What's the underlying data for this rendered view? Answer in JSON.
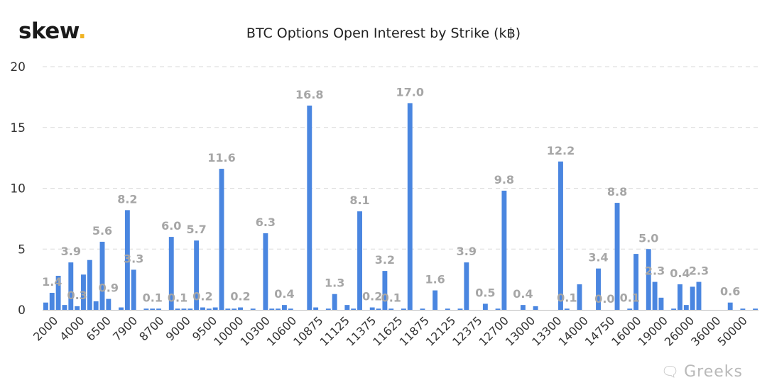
{
  "brand": {
    "name": "skew",
    "dot": "."
  },
  "watermark": {
    "icon": "chat-bubbles-icon",
    "text": "Greeks"
  },
  "colors": {
    "bar": "#4a86e0",
    "grid": "#d9d9d9",
    "axis": "#333333",
    "label": "#a6a6a6",
    "logo_dot": "#f0b323"
  },
  "chart_data": {
    "type": "bar",
    "title": "BTC Options Open Interest by Strike (k฿)",
    "xlabel": "",
    "ylabel": "",
    "ylim": [
      0,
      20
    ],
    "yticks": [
      0,
      5,
      10,
      15,
      20
    ],
    "grid": true,
    "tick_labels": [
      "2000",
      "4000",
      "6500",
      "7900",
      "8700",
      "9000",
      "9500",
      "10000",
      "10300",
      "10600",
      "10875",
      "11125",
      "11375",
      "11625",
      "11875",
      "12125",
      "12375",
      "12700",
      "13000",
      "13300",
      "14000",
      "14750",
      "16000",
      "19000",
      "26000",
      "36000",
      "50000"
    ],
    "values": [
      0.6,
      1.4,
      2.8,
      0.4,
      3.9,
      0.3,
      2.9,
      4.1,
      0.7,
      5.6,
      0.9,
      0,
      0.2,
      8.2,
      3.3,
      0,
      0.1,
      0.1,
      0.1,
      0,
      6.0,
      0.1,
      0.1,
      0.1,
      5.7,
      0.2,
      0.1,
      0.2,
      11.6,
      0.1,
      0.1,
      0.2,
      0,
      0.1,
      0,
      6.3,
      0.1,
      0.1,
      0.4,
      0.1,
      0,
      0,
      16.8,
      0.2,
      0,
      0.1,
      1.3,
      0,
      0.4,
      0.1,
      8.1,
      0,
      0.2,
      0.1,
      3.2,
      0.1,
      0,
      0.1,
      17.0,
      0,
      0.1,
      0,
      1.6,
      0,
      0.1,
      0,
      0.1,
      3.9,
      0,
      0,
      0.5,
      0,
      0.1,
      9.8,
      0,
      0,
      0.4,
      0,
      0.3,
      0,
      0,
      0,
      12.2,
      0.1,
      0,
      2.1,
      0,
      0,
      3.4,
      0,
      0,
      8.8,
      0,
      0.1,
      4.6,
      0,
      5.0,
      2.3,
      1.0,
      0,
      0.1,
      2.1,
      0.4,
      1.9,
      2.3,
      0,
      0,
      0,
      0,
      0.6,
      0,
      0.1,
      0,
      0.1
    ],
    "data_labels": [
      {
        "bar": 1,
        "text": "1.4"
      },
      {
        "bar": 4,
        "text": "3.9"
      },
      {
        "bar": 5,
        "text": "0.3"
      },
      {
        "bar": 9,
        "text": "5.6"
      },
      {
        "bar": 10,
        "text": "0.9"
      },
      {
        "bar": 13,
        "text": "8.2"
      },
      {
        "bar": 14,
        "text": "3.3"
      },
      {
        "bar": 17,
        "text": "0.1"
      },
      {
        "bar": 20,
        "text": "6.0"
      },
      {
        "bar": 21,
        "text": "0.1"
      },
      {
        "bar": 24,
        "text": "5.7"
      },
      {
        "bar": 25,
        "text": "0.2"
      },
      {
        "bar": 28,
        "text": "11.6"
      },
      {
        "bar": 31,
        "text": "0.2"
      },
      {
        "bar": 35,
        "text": "6.3"
      },
      {
        "bar": 38,
        "text": "0.4"
      },
      {
        "bar": 42,
        "text": "16.8"
      },
      {
        "bar": 46,
        "text": "1.3"
      },
      {
        "bar": 50,
        "text": "8.1"
      },
      {
        "bar": 52,
        "text": "0.2"
      },
      {
        "bar": 54,
        "text": "3.2"
      },
      {
        "bar": 55,
        "text": "0.1"
      },
      {
        "bar": 58,
        "text": "17.0"
      },
      {
        "bar": 62,
        "text": "1.6"
      },
      {
        "bar": 67,
        "text": "3.9"
      },
      {
        "bar": 70,
        "text": "0.5"
      },
      {
        "bar": 73,
        "text": "9.8"
      },
      {
        "bar": 76,
        "text": "0.4"
      },
      {
        "bar": 82,
        "text": "12.2"
      },
      {
        "bar": 83,
        "text": "0.1"
      },
      {
        "bar": 88,
        "text": "3.4"
      },
      {
        "bar": 89,
        "text": "0.0"
      },
      {
        "bar": 91,
        "text": "8.8"
      },
      {
        "bar": 93,
        "text": "0.1"
      },
      {
        "bar": 96,
        "text": "5.0"
      },
      {
        "bar": 97,
        "text": "2.3"
      },
      {
        "bar": 101,
        "text": "0.4"
      },
      {
        "bar": 104,
        "text": "2.3"
      },
      {
        "bar": 109,
        "text": "0.6"
      }
    ]
  }
}
